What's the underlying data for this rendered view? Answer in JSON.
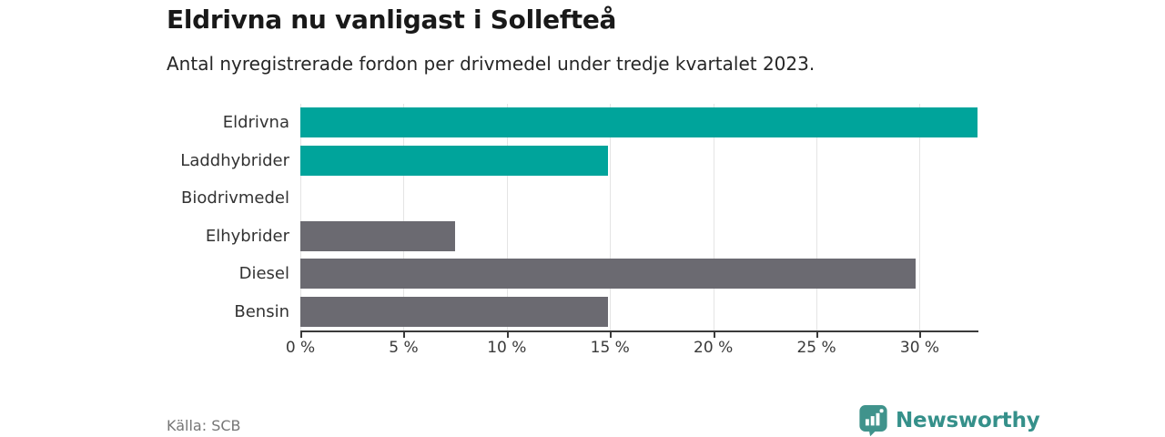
{
  "header": {
    "title": "Eldrivna nu vanligast i Sollefteå",
    "subtitle": "Antal nyregistrerade fordon per drivmedel under tredje kvartalet 2023."
  },
  "chart_data": {
    "type": "bar",
    "orientation": "horizontal",
    "title": "Eldrivna nu vanligast i Sollefteå",
    "subtitle": "Antal nyregistrerade fordon per drivmedel under tredje kvartalet 2023.",
    "categories": [
      "Eldrivna",
      "Laddhybrider",
      "Biodrivmedel",
      "Elhybrider",
      "Diesel",
      "Bensin"
    ],
    "values": [
      32.8,
      14.9,
      0,
      7.5,
      29.8,
      14.9
    ],
    "unit": "%",
    "xlim": [
      0,
      32.8
    ],
    "xticks": [
      0,
      5,
      10,
      15,
      20,
      25,
      30
    ],
    "xtick_suffix": " %",
    "grid": true,
    "legend": "none",
    "bar_colors": [
      "#00a49b",
      "#00a49b",
      "#6b6a71",
      "#6b6a71",
      "#6b6a71",
      "#6b6a71"
    ],
    "colors": {
      "highlight": "#00a49b",
      "default": "#6b6a71",
      "gridline": "#e4e4e4",
      "axis": "#3a3a3a"
    }
  },
  "footer": {
    "source": "Källa: SCB",
    "brand": "Newsworthy",
    "brand_color": "#35908a",
    "brand_icon": "bar-chart-pin-icon",
    "brand_icon_color": "#40938c"
  }
}
